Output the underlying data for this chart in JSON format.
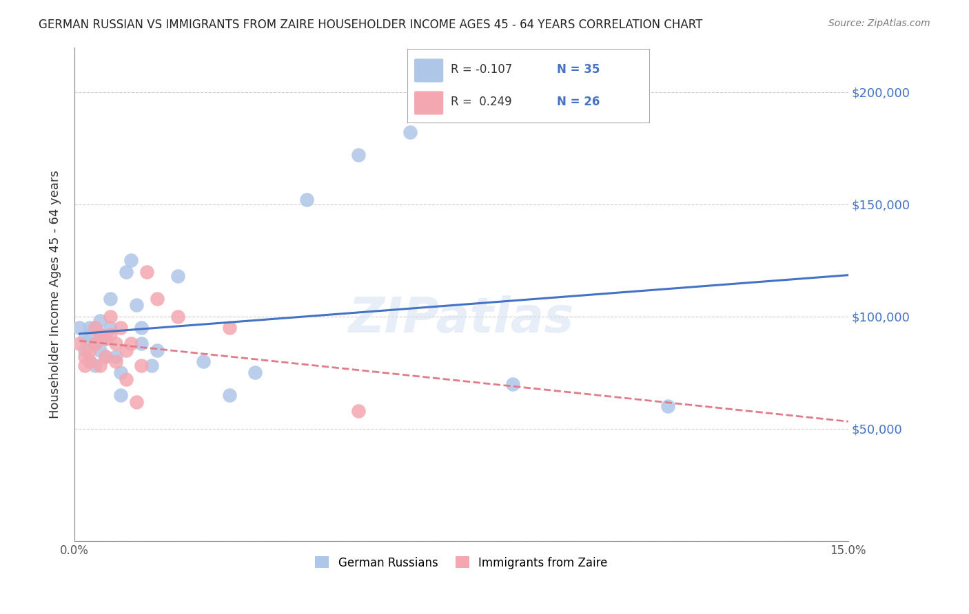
{
  "title": "GERMAN RUSSIAN VS IMMIGRANTS FROM ZAIRE HOUSEHOLDER INCOME AGES 45 - 64 YEARS CORRELATION CHART",
  "source": "Source: ZipAtlas.com",
  "ylabel": "Householder Income Ages 45 - 64 years",
  "xlabel_ticks": [
    "0.0%",
    "15.0%"
  ],
  "xlim": [
    0.0,
    0.15
  ],
  "ylim": [
    0,
    220000
  ],
  "yticks": [
    0,
    50000,
    100000,
    150000,
    200000
  ],
  "ytick_labels": [
    "",
    "$50,000",
    "$100,000",
    "$150,000",
    "$200,000"
  ],
  "background_color": "#ffffff",
  "grid_color": "#cccccc",
  "watermark": "ZIPatlas",
  "legend_R1": "R = -0.107",
  "legend_N1": "N = 35",
  "legend_R2": "R =  0.249",
  "legend_N2": "N = 26",
  "blue_color": "#aec6e8",
  "pink_color": "#f4a7b0",
  "blue_line_color": "#4472c4",
  "pink_line_color": "#e07b8a",
  "german_russians_x": [
    0.001,
    0.002,
    0.002,
    0.003,
    0.003,
    0.003,
    0.004,
    0.004,
    0.004,
    0.005,
    0.005,
    0.005,
    0.006,
    0.006,
    0.007,
    0.007,
    0.008,
    0.009,
    0.009,
    0.01,
    0.011,
    0.012,
    0.013,
    0.013,
    0.015,
    0.016,
    0.02,
    0.025,
    0.03,
    0.035,
    0.045,
    0.055,
    0.065,
    0.085,
    0.115
  ],
  "german_russians_y": [
    95000,
    90000,
    85000,
    95000,
    92000,
    80000,
    95000,
    88000,
    78000,
    98000,
    92000,
    85000,
    90000,
    82000,
    108000,
    95000,
    82000,
    75000,
    65000,
    120000,
    125000,
    105000,
    95000,
    88000,
    78000,
    85000,
    118000,
    80000,
    65000,
    75000,
    152000,
    172000,
    182000,
    70000,
    60000
  ],
  "zaire_x": [
    0.001,
    0.002,
    0.002,
    0.003,
    0.003,
    0.004,
    0.004,
    0.005,
    0.005,
    0.006,
    0.006,
    0.007,
    0.007,
    0.008,
    0.008,
    0.009,
    0.01,
    0.01,
    0.011,
    0.012,
    0.013,
    0.014,
    0.016,
    0.02,
    0.03,
    0.055
  ],
  "zaire_y": [
    88000,
    82000,
    78000,
    85000,
    80000,
    95000,
    88000,
    92000,
    78000,
    90000,
    82000,
    100000,
    92000,
    88000,
    80000,
    95000,
    85000,
    72000,
    88000,
    62000,
    78000,
    120000,
    108000,
    100000,
    95000,
    58000
  ]
}
